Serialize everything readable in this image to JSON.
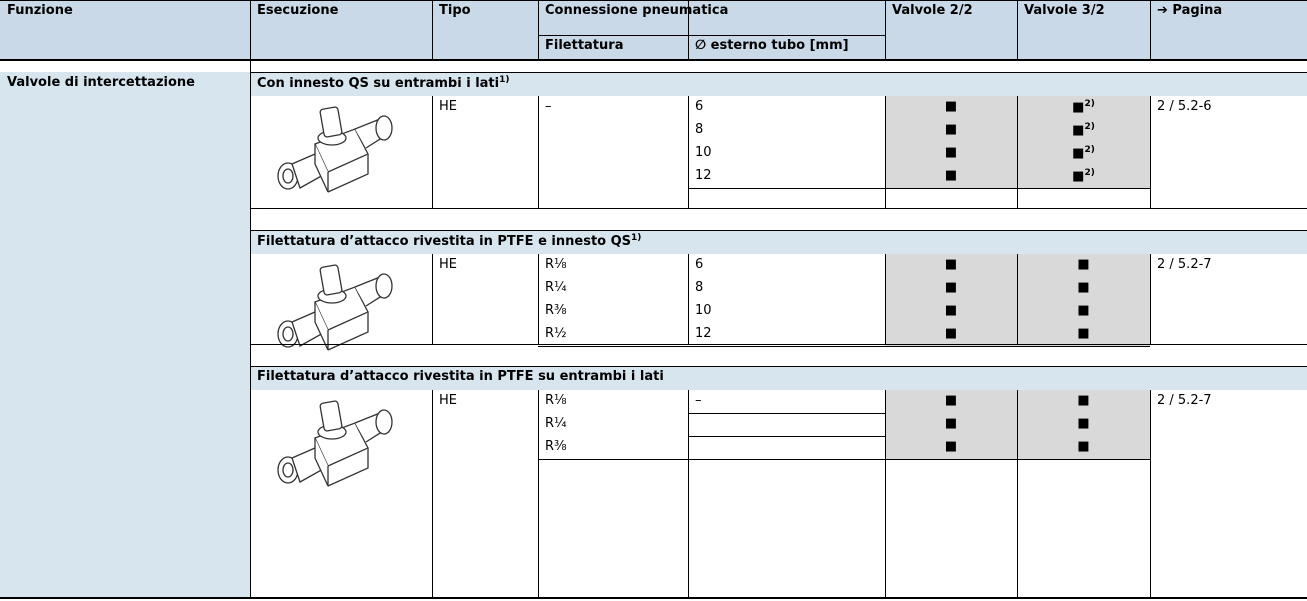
{
  "header": {
    "columns": [
      "Funzione",
      "Esecuzione",
      "Tipo",
      "Connessione pneumatica",
      "Valvole 2/2",
      "Valvole 3/2",
      "➔ Pagina"
    ],
    "subcolumns": [
      "Filettatura",
      "∅ esterno tubo [mm]"
    ]
  },
  "function": "Valvole di intercettazione",
  "sections": [
    {
      "title": "Con innesto QS su entrambi i lati",
      "footnote": "1)",
      "type": "HE",
      "page": "2 / 5.2-6",
      "thread": "–",
      "rows": [
        {
          "tube": "6",
          "v22": "■",
          "v32": "■",
          "note": "2)"
        },
        {
          "tube": "8",
          "v22": "■",
          "v32": "■",
          "note": "2)"
        },
        {
          "tube": "10",
          "v22": "■",
          "v32": "■",
          "note": "2)"
        },
        {
          "tube": "12",
          "v22": "■",
          "v32": "■",
          "note": "2)"
        }
      ]
    },
    {
      "title": "Filettatura d’attacco rivestita in PTFE e innesto QS",
      "footnote": "1)",
      "type": "HE",
      "page": "2 / 5.2-7",
      "rows": [
        {
          "thread": "R⅛",
          "tube": "6",
          "v22": "■",
          "v32": "■"
        },
        {
          "thread": "R¼",
          "tube": "8",
          "v22": "■",
          "v32": "■"
        },
        {
          "thread": "R⅜",
          "tube": "10",
          "v22": "■",
          "v32": "■"
        },
        {
          "thread": "R½",
          "tube": "12",
          "v22": "■",
          "v32": "■"
        }
      ]
    },
    {
      "title": "Filettatura d’attacco rivestita in PTFE su entrambi i lati",
      "type": "HE",
      "page": "2 / 5.2-7",
      "tube": "–",
      "rows": [
        {
          "thread": "R⅛",
          "v22": "■",
          "v32": "■"
        },
        {
          "thread": "R¼",
          "v22": "■",
          "v32": "■"
        },
        {
          "thread": "R⅜",
          "v22": "■",
          "v32": "■"
        }
      ]
    }
  ]
}
